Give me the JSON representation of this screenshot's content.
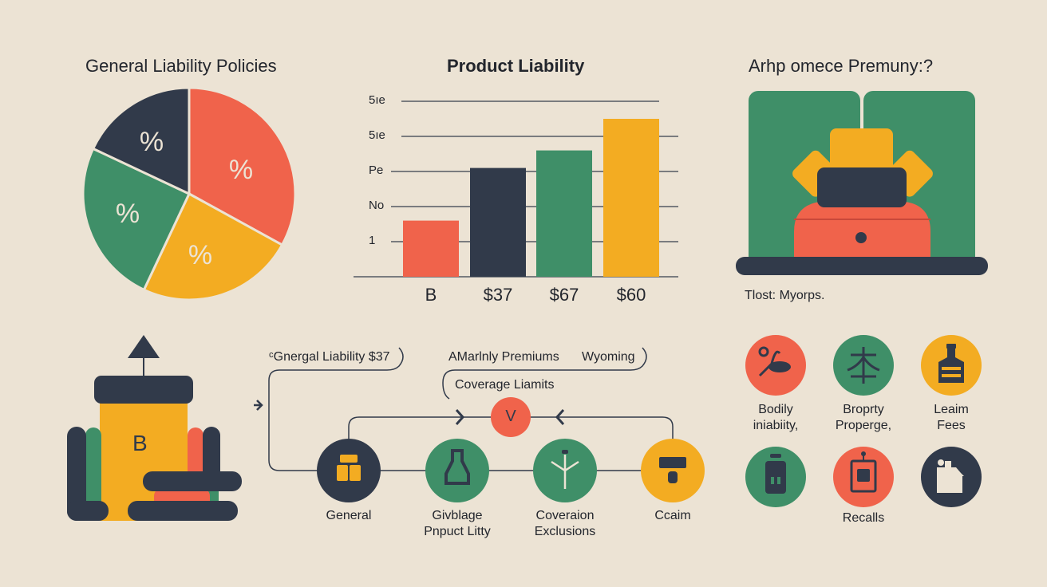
{
  "colors": {
    "background": "#ECE3D4",
    "red": "#F0634B",
    "navy": "#313A4A",
    "green": "#3F8F68",
    "yellow": "#F3AC22",
    "text": "#23262d"
  },
  "pie": {
    "title": "General Liability Policies",
    "chart_data": {
      "type": "pie",
      "title": "General Liability Policies",
      "slices": [
        {
          "label": "%",
          "fraction": 0.33,
          "color": "#F0634B"
        },
        {
          "label": "%",
          "fraction": 0.24,
          "color": "#F3AC22"
        },
        {
          "label": "%",
          "fraction": 0.25,
          "color": "#3F8F68"
        },
        {
          "label": "%",
          "fraction": 0.18,
          "color": "#313A4A"
        }
      ]
    }
  },
  "chart_data": {
    "type": "bar",
    "title": "Product Liability",
    "categories": [
      "B",
      "$37",
      "$67",
      "$60"
    ],
    "values": [
      1.6,
      3.1,
      3.6,
      4.5
    ],
    "colors": [
      "#F0634B",
      "#313A4A",
      "#3F8F68",
      "#F3AC22"
    ],
    "ytick_labels": [
      "1",
      "No",
      "Pe",
      "5ıe",
      "5ıe"
    ],
    "ylim": [
      0,
      5
    ],
    "grid": true
  },
  "premium": {
    "title": "Arhp omece Premuny:?",
    "caption": "Tlost: Myorps."
  },
  "flow": {
    "callout_1": "ᶜGnergal Liability  $37",
    "callout_2a": "AMarlnly Premiums",
    "callout_2b": "Wyoming",
    "callout_3": "Coverage Liamits",
    "center_badge": "V",
    "nodes": [
      {
        "lines": [
          "General"
        ],
        "icon": "blocks-icon",
        "color": "#313A4A"
      },
      {
        "lines": [
          "Givblage",
          "Pnpuct Litty"
        ],
        "icon": "bottle-icon",
        "color": "#3F8F68"
      },
      {
        "lines": [
          "Coveraion",
          "Exclusions"
        ],
        "icon": "branch-icon",
        "color": "#3F8F68"
      },
      {
        "lines": [
          "Ccaim"
        ],
        "icon": "hammer-icon",
        "color": "#F3AC22"
      }
    ]
  },
  "building": {
    "letter": "B"
  },
  "coverage_icons": [
    {
      "lines": [
        "Bodily",
        "iniabiity,"
      ],
      "icon": "vacuum-icon",
      "color": "#F0634B"
    },
    {
      "lines": [
        "Broprty",
        "Properge,"
      ],
      "icon": "character-icon",
      "color": "#3F8F68"
    },
    {
      "lines": [
        "Leaim",
        "Fees"
      ],
      "icon": "bottle-icon",
      "color": "#F3AC22"
    },
    {
      "lines": [],
      "icon": "jar-icon",
      "color": "#3F8F68"
    },
    {
      "lines": [
        "Recalls"
      ],
      "icon": "device-icon",
      "color": "#F0634B"
    },
    {
      "lines": [],
      "icon": "factory-icon",
      "color": "#313A4A"
    }
  ]
}
